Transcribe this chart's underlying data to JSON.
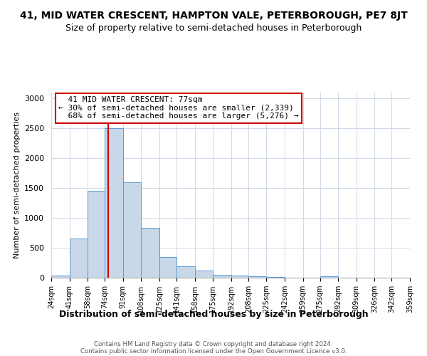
{
  "title1": "41, MID WATER CRESCENT, HAMPTON VALE, PETERBOROUGH, PE7 8JT",
  "title2": "Size of property relative to semi-detached houses in Peterborough",
  "xlabel": "Distribution of semi-detached houses by size in Peterborough",
  "ylabel": "Number of semi-detached properties",
  "footer1": "Contains HM Land Registry data © Crown copyright and database right 2024.",
  "footer2": "Contains public sector information licensed under the Open Government Licence v3.0.",
  "property_label": "41 MID WATER CRESCENT: 77sqm",
  "pct_smaller": 30,
  "n_smaller": 2339,
  "pct_larger": 68,
  "n_larger": 5276,
  "bin_edges": [
    24,
    41,
    58,
    74,
    91,
    108,
    125,
    141,
    158,
    175,
    192,
    208,
    225,
    242,
    259,
    275,
    292,
    309,
    326,
    342,
    359
  ],
  "bar_heights": [
    40,
    650,
    1450,
    2500,
    1600,
    830,
    340,
    195,
    125,
    50,
    30,
    20,
    15,
    5,
    5,
    20,
    5,
    5,
    5,
    5
  ],
  "bar_color": "#c8d8e8",
  "bar_edge_color": "#5b9bd5",
  "red_line_x": 77,
  "ylim": [
    0,
    3100
  ],
  "yticks": [
    0,
    500,
    1000,
    1500,
    2000,
    2500,
    3000
  ],
  "bg_color": "#ffffff",
  "grid_color": "#d0d8e8",
  "annotation_box_color": "#ffffff",
  "annotation_border_color": "#cc0000",
  "title1_fontsize": 10,
  "title2_fontsize": 9,
  "xlabel_fontsize": 9,
  "ylabel_fontsize": 8,
  "annot_fontsize": 8
}
